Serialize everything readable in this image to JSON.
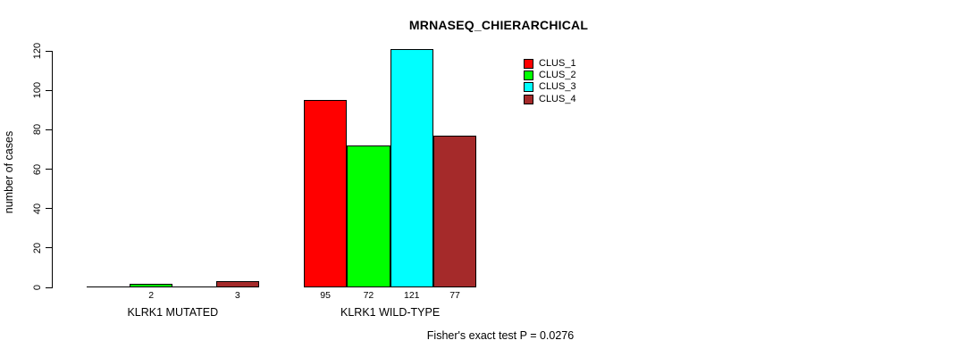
{
  "title": "MRNASEQ_CHIERARCHICAL",
  "y_axis": {
    "label": "number of cases",
    "ticks": [
      0,
      20,
      40,
      60,
      80,
      100,
      120
    ]
  },
  "footer": "Fisher's exact test P = 0.0276",
  "legend": {
    "items": [
      {
        "label": "CLUS_1",
        "color": "#FF0000"
      },
      {
        "label": "CLUS_2",
        "color": "#00FF00"
      },
      {
        "label": "CLUS_3",
        "color": "#00FFFF"
      },
      {
        "label": "CLUS_4",
        "color": "#A52A2A"
      }
    ]
  },
  "chart_data": {
    "type": "bar",
    "title": "MRNASEQ_CHIERARCHICAL",
    "ylabel": "number of cases",
    "xlabel": "",
    "ylim": [
      0,
      120
    ],
    "yticks": [
      0,
      20,
      40,
      60,
      80,
      100,
      120
    ],
    "grid": false,
    "legend_position": "top-right",
    "categories": [
      "KLRK1 MUTATED",
      "KLRK1 WILD-TYPE"
    ],
    "series": [
      {
        "name": "CLUS_1",
        "color": "#FF0000",
        "values": [
          0,
          95
        ]
      },
      {
        "name": "CLUS_2",
        "color": "#00FF00",
        "values": [
          2,
          72
        ]
      },
      {
        "name": "CLUS_3",
        "color": "#00FFFF",
        "values": [
          0,
          121
        ]
      },
      {
        "name": "CLUS_4",
        "color": "#A52A2A",
        "values": [
          3,
          77
        ]
      }
    ],
    "visible_bar_labels": [
      "2",
      "3",
      "95",
      "72",
      "121",
      "77"
    ],
    "annotation": "Fisher's exact test P = 0.0276"
  }
}
